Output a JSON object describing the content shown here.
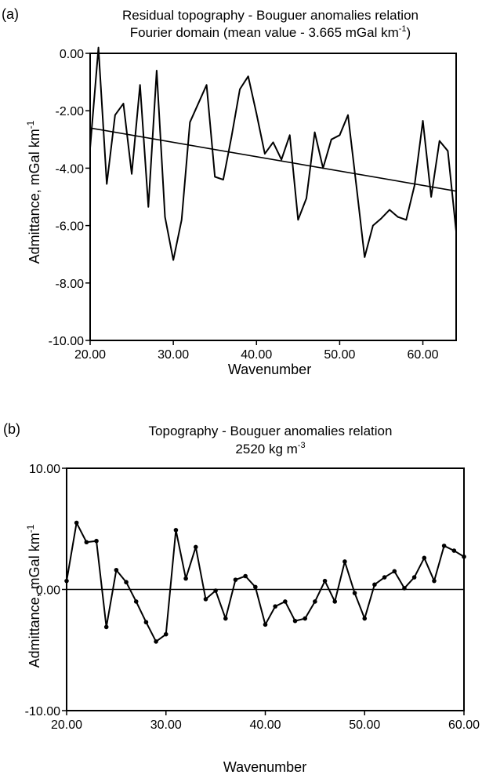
{
  "chart_data": [
    {
      "type": "line",
      "panel_label": "(a)",
      "title": "Residual topography - Bouguer anomalies relation",
      "subtitle_main": "Fourier domain (mean value - 3.665 mGal km",
      "subtitle_sup": "-1",
      "subtitle_tail": ")",
      "xlabel": "Wavenumber",
      "ylabel_main": "Admittance, mGal km",
      "ylabel_sup": "-1",
      "xlim": [
        20,
        64
      ],
      "ylim": [
        -10,
        0
      ],
      "xticks": [
        20,
        30,
        40,
        50,
        60
      ],
      "xtick_labels": [
        "20.00",
        "30.00",
        "40.00",
        "50.00",
        "60.00"
      ],
      "yticks": [
        0,
        -2,
        -4,
        -6,
        -8,
        -10
      ],
      "ytick_labels": [
        "0.00",
        "-2.00",
        "-4.00",
        "-6.00",
        "-8.00",
        "-10.00"
      ],
      "grid": false,
      "markers": false,
      "series": [
        {
          "x": [
            20,
            21,
            22,
            23,
            24,
            25,
            26,
            27,
            28,
            29,
            30,
            31,
            32,
            33,
            34,
            35,
            36,
            37,
            38,
            39,
            40,
            41,
            42,
            43,
            44,
            45,
            46,
            47,
            48,
            49,
            50,
            51,
            52,
            53,
            54,
            55,
            56,
            57,
            58,
            59,
            60,
            61,
            62,
            63,
            64
          ],
          "y": [
            -3.3,
            0.2,
            -4.55,
            -2.15,
            -1.75,
            -4.2,
            -1.1,
            -5.35,
            -0.6,
            -5.7,
            -7.2,
            -5.8,
            -2.4,
            -1.75,
            -1.1,
            -4.3,
            -4.4,
            -2.9,
            -1.25,
            -0.8,
            -2.1,
            -3.5,
            -3.1,
            -3.7,
            -2.85,
            -5.8,
            -5.05,
            -2.75,
            -4.0,
            -3.0,
            -2.85,
            -2.15,
            -4.6,
            -7.1,
            -6.0,
            -5.75,
            -5.45,
            -5.7,
            -5.8,
            -4.6,
            -2.35,
            -5.0,
            -3.05,
            -3.4,
            -6.2
          ]
        }
      ],
      "trend_line": {
        "x": [
          20,
          64
        ],
        "y": [
          -2.6,
          -4.8
        ]
      }
    },
    {
      "type": "line",
      "panel_label": "(b)",
      "title": "Topography - Bouguer anomalies relation",
      "subtitle_main": "2520 kg m",
      "subtitle_sup": "-3",
      "subtitle_tail": "",
      "xlabel": "Wavenumber",
      "ylabel_main": "Admittance, mGal km",
      "ylabel_sup": "-1",
      "xlim": [
        20,
        60
      ],
      "ylim": [
        -10,
        10
      ],
      "xticks": [
        20,
        30,
        40,
        50,
        60
      ],
      "xtick_labels": [
        "20.00",
        "30.00",
        "40.00",
        "50.00",
        "60.00"
      ],
      "yticks": [
        10,
        0,
        -10
      ],
      "ytick_labels": [
        "10.00",
        "0.00",
        "-10.00"
      ],
      "grid": false,
      "markers": true,
      "series": [
        {
          "x": [
            20,
            21,
            22,
            23,
            24,
            25,
            26,
            27,
            28,
            29,
            30,
            31,
            32,
            33,
            34,
            35,
            36,
            37,
            38,
            39,
            40,
            41,
            42,
            43,
            44,
            45,
            46,
            47,
            48,
            49,
            50,
            51,
            52,
            53,
            54,
            55,
            56,
            57,
            58,
            59,
            60
          ],
          "y": [
            0.7,
            5.5,
            3.9,
            4.0,
            -3.1,
            1.6,
            0.6,
            -1.0,
            -2.7,
            -4.3,
            -3.7,
            4.9,
            0.9,
            3.5,
            -0.8,
            -0.1,
            -2.4,
            0.8,
            1.1,
            0.2,
            -2.9,
            -1.4,
            -1.0,
            -2.6,
            -2.4,
            -1.0,
            0.7,
            -1.0,
            2.3,
            -0.3,
            -2.4,
            0.4,
            1.0,
            1.5,
            0.1,
            1.0,
            2.6,
            0.7,
            3.6,
            3.2,
            2.7
          ]
        }
      ],
      "zero_line": true
    }
  ]
}
